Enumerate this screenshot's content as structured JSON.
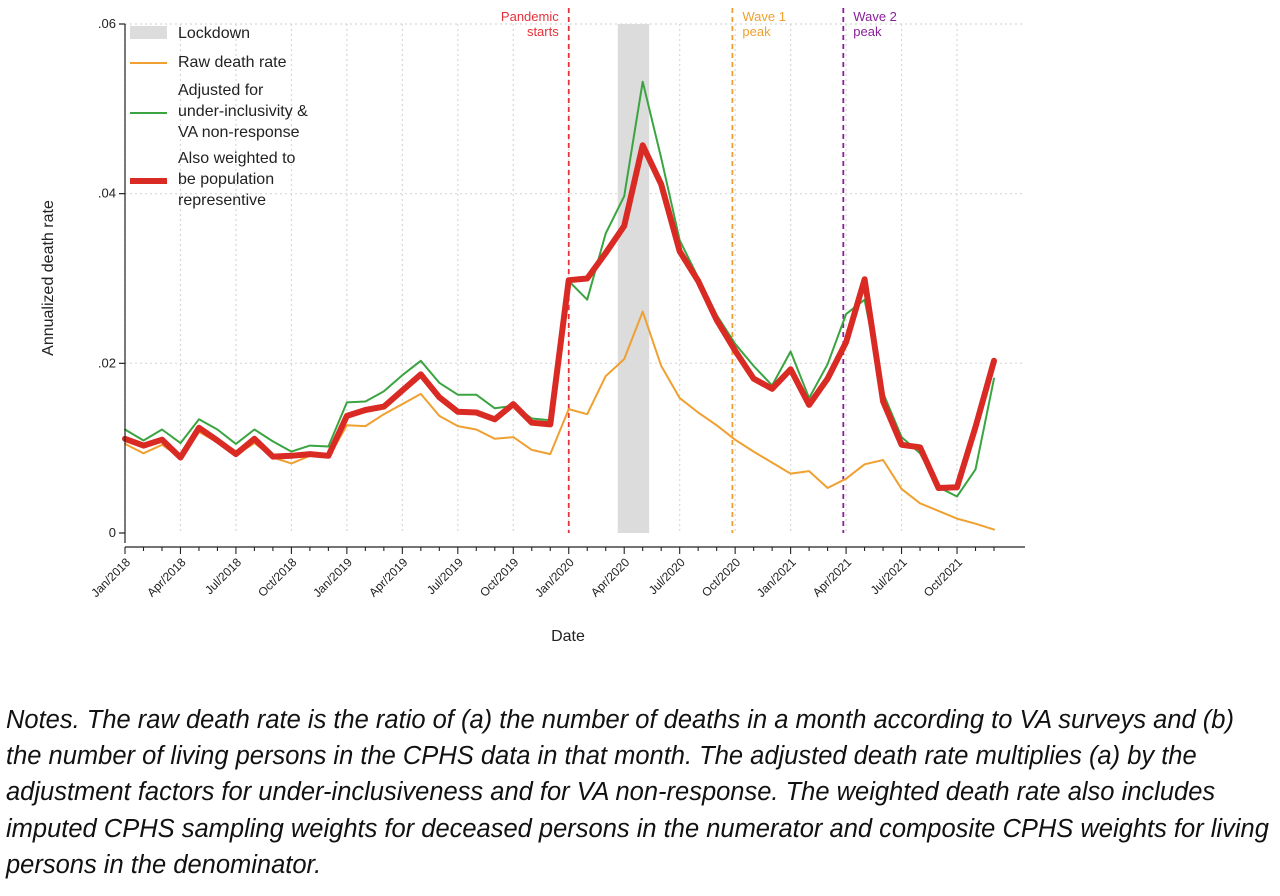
{
  "chart_data": {
    "type": "line",
    "xlabel": "Date",
    "ylabel": "Annualized death rate",
    "ylim": [
      0,
      0.06
    ],
    "yticks": [
      0,
      0.02,
      0.04,
      0.06
    ],
    "ytick_labels": [
      "0",
      ".02",
      ".04",
      ".06"
    ],
    "xlim": [
      "Jan/2018",
      "Dec/2021"
    ],
    "xtick_labels": [
      "Jan/2018",
      "Apr/2018",
      "Jul/2018",
      "Oct/2018",
      "Jan/2019",
      "Apr/2019",
      "Jul/2019",
      "Oct/2019",
      "Jan/2020",
      "Apr/2020",
      "Jul/2020",
      "Oct/2020",
      "Jan/2021",
      "Apr/2021",
      "Jul/2021",
      "Oct/2021"
    ],
    "grid": "dotted",
    "legend_position": "top-left",
    "x": [
      "Jan/2018",
      "Feb/2018",
      "Mar/2018",
      "Apr/2018",
      "May/2018",
      "Jun/2018",
      "Jul/2018",
      "Aug/2018",
      "Sep/2018",
      "Oct/2018",
      "Nov/2018",
      "Dec/2018",
      "Jan/2019",
      "Feb/2019",
      "Mar/2019",
      "Apr/2019",
      "May/2019",
      "Jun/2019",
      "Jul/2019",
      "Aug/2019",
      "Sep/2019",
      "Oct/2019",
      "Nov/2019",
      "Dec/2019",
      "Jan/2020",
      "Feb/2020",
      "Mar/2020",
      "Apr/2020",
      "May/2020",
      "Jun/2020",
      "Jul/2020",
      "Aug/2020",
      "Sep/2020",
      "Oct/2020",
      "Nov/2020",
      "Dec/2020",
      "Jan/2021",
      "Feb/2021",
      "Mar/2021",
      "Apr/2021",
      "May/2021",
      "Jun/2021",
      "Jul/2021",
      "Aug/2021",
      "Sep/2021",
      "Oct/2021",
      "Nov/2021",
      "Dec/2021"
    ],
    "series": [
      {
        "name": "Raw death rate",
        "color": "#f0a030",
        "width": 2,
        "values": [
          0.0105,
          0.0094,
          0.0104,
          0.0089,
          0.0119,
          0.0107,
          0.0092,
          0.0106,
          0.0089,
          0.0082,
          0.0091,
          0.0089,
          0.0127,
          0.0126,
          0.014,
          0.0152,
          0.0164,
          0.0138,
          0.0126,
          0.0122,
          0.0111,
          0.0113,
          0.0098,
          0.0093,
          0.0146,
          0.014,
          0.0185,
          0.0205,
          0.0261,
          0.0197,
          0.0159,
          0.0142,
          0.0127,
          0.011,
          0.0096,
          0.0083,
          0.007,
          0.0073,
          0.0053,
          0.0064,
          0.0081,
          0.0086,
          0.0052,
          0.0035,
          0.0026,
          0.0017,
          0.0011,
          0.0004
        ]
      },
      {
        "name": "Adjusted for under-inclusivity & VA non-response",
        "color": "#3aa540",
        "width": 2,
        "values": [
          0.0122,
          0.0109,
          0.0122,
          0.0106,
          0.0134,
          0.0122,
          0.0105,
          0.0122,
          0.0108,
          0.0096,
          0.0103,
          0.0102,
          0.0154,
          0.0155,
          0.0167,
          0.0186,
          0.0203,
          0.0177,
          0.0163,
          0.0163,
          0.0147,
          0.015,
          0.0135,
          0.0133,
          0.0297,
          0.0275,
          0.0353,
          0.0397,
          0.0532,
          0.0442,
          0.0345,
          0.0301,
          0.0257,
          0.0223,
          0.0197,
          0.0174,
          0.0214,
          0.0159,
          0.0199,
          0.0258,
          0.0275,
          0.0165,
          0.0113,
          0.0094,
          0.0054,
          0.0043,
          0.0075,
          0.0182
        ]
      },
      {
        "name": "Also weighted to be population representive",
        "color": "#d92a24",
        "width": 6,
        "values": [
          0.0111,
          0.0103,
          0.011,
          0.0089,
          0.0124,
          0.0109,
          0.0093,
          0.0111,
          0.009,
          0.0091,
          0.0093,
          0.0091,
          0.0138,
          0.0145,
          0.0149,
          0.0168,
          0.0187,
          0.016,
          0.0143,
          0.0142,
          0.0134,
          0.0152,
          0.013,
          0.0128,
          0.0298,
          0.03,
          0.033,
          0.0362,
          0.0457,
          0.0411,
          0.0332,
          0.0297,
          0.0251,
          0.0215,
          0.0182,
          0.017,
          0.0193,
          0.0151,
          0.0182,
          0.0225,
          0.0299,
          0.0155,
          0.0104,
          0.0101,
          0.0053,
          0.0054,
          0.0125,
          0.0203
        ]
      }
    ],
    "shaded_regions": [
      {
        "label": "Lockdown",
        "from": "Mar/2020 (late)",
        "to": "May/2020 (early)",
        "color": "#dcdcdc"
      }
    ],
    "annotations": [
      {
        "text": [
          "Pandemic",
          "starts"
        ],
        "at": "Jan/2020",
        "color": "#e8303a",
        "side": "left"
      },
      {
        "text": [
          "Wave 1",
          "peak"
        ],
        "at": "Sep/2020",
        "color": "#f0a030",
        "side": "right"
      },
      {
        "text": [
          "Wave 2",
          "peak"
        ],
        "at": "Mar/2021",
        "color": "#8a1f9a",
        "side": "right"
      }
    ],
    "legend": [
      {
        "type": "box",
        "color": "#dcdcdc",
        "lines": [
          "Lockdown"
        ]
      },
      {
        "type": "line",
        "color": "#f0a030",
        "width": 2,
        "lines": [
          "Raw death rate"
        ]
      },
      {
        "type": "line",
        "color": "#3aa540",
        "width": 2,
        "lines": [
          "Adjusted for",
          "under-inclusivity &",
          "VA non-response"
        ]
      },
      {
        "type": "line",
        "color": "#d92a24",
        "width": 6,
        "lines": [
          "Also weighted to",
          "be population",
          "representive"
        ]
      }
    ]
  },
  "notes": "Notes.  The raw death rate is the ratio of (a) the number of deaths in a month according to VA surveys and (b) the number of living persons in the CPHS data in that month.  The adjusted death rate multiplies (a) by the adjustment factors for under-inclusiveness and for VA non-response.  The weighted death rate also includes imputed CPHS sampling weights for deceased persons in the numerator and composite CPHS weights for living persons in the denominator."
}
